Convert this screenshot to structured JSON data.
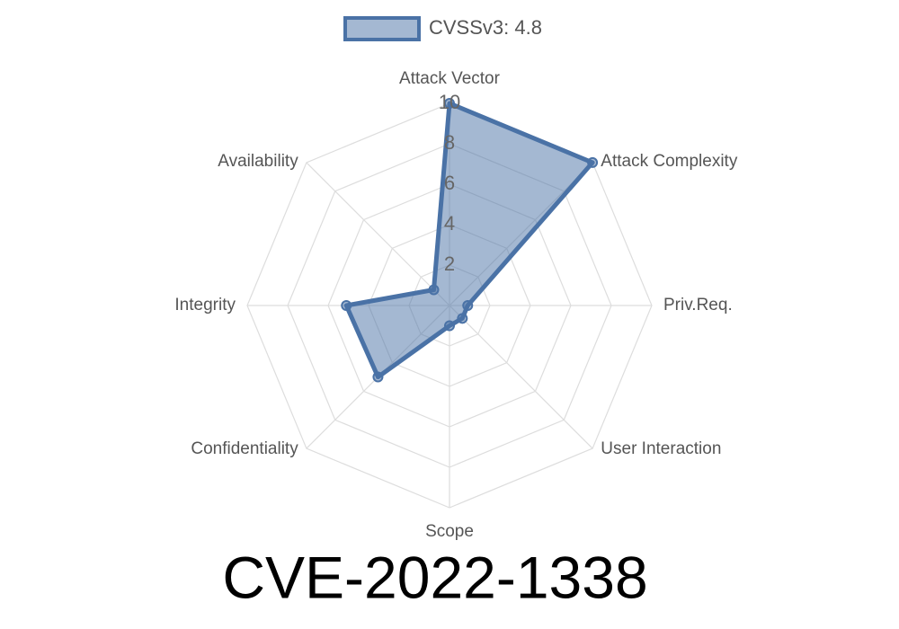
{
  "chart_data": {
    "type": "radar",
    "title": "CVE-2022-1338",
    "categories": [
      "Attack Vector",
      "Attack Complexity",
      "Priv.Req.",
      "User Interaction",
      "Scope",
      "Confidentiality",
      "Integrity",
      "Availability"
    ],
    "series": [
      {
        "name": "CVSSv3: 4.8",
        "color": "#4a72a6",
        "values": [
          10,
          10,
          0.9,
          0.9,
          1,
          5,
          5.1,
          1.1
        ]
      }
    ],
    "rlim": [
      0,
      10
    ],
    "rticks": [
      2,
      4,
      6,
      8,
      10
    ],
    "grid": true
  }
}
